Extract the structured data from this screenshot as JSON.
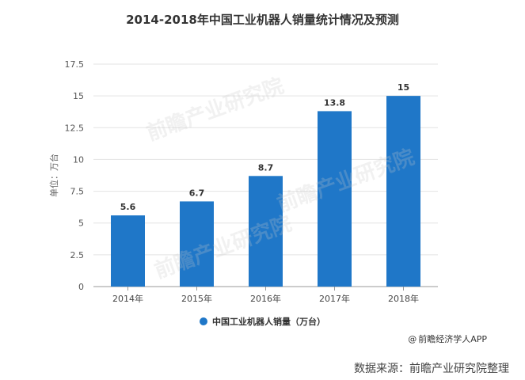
{
  "chart_data": {
    "type": "bar",
    "title": "2014-2018年中国工业机器人销量统计情况及预测",
    "ylabel": "单位：万台",
    "xlabel": "",
    "categories": [
      "2014年",
      "2015年",
      "2016年",
      "2017年",
      "2018年"
    ],
    "series": [
      {
        "name": "中国工业机器人销量（万台）",
        "values": [
          5.6,
          6.7,
          8.7,
          13.8,
          15
        ],
        "labels": [
          "5.6",
          "6.7",
          "8.7",
          "13.8",
          "15"
        ],
        "color": "#1f77c8"
      }
    ],
    "ylim": [
      0,
      17.5
    ],
    "yticks": [
      0,
      2.5,
      5,
      7.5,
      10,
      12.5,
      15,
      17.5
    ],
    "ytick_labels": [
      "0",
      "2.5",
      "5",
      "7.5",
      "10",
      "12.5",
      "15",
      "17.5"
    ],
    "grid": true,
    "legend": "bottom-center"
  },
  "credit": "前瞻经济学人APP",
  "credit_icon": "at-sign-icon",
  "source": "数据来源：前瞻产业研究院整理",
  "watermark": "前瞻产业研究院"
}
